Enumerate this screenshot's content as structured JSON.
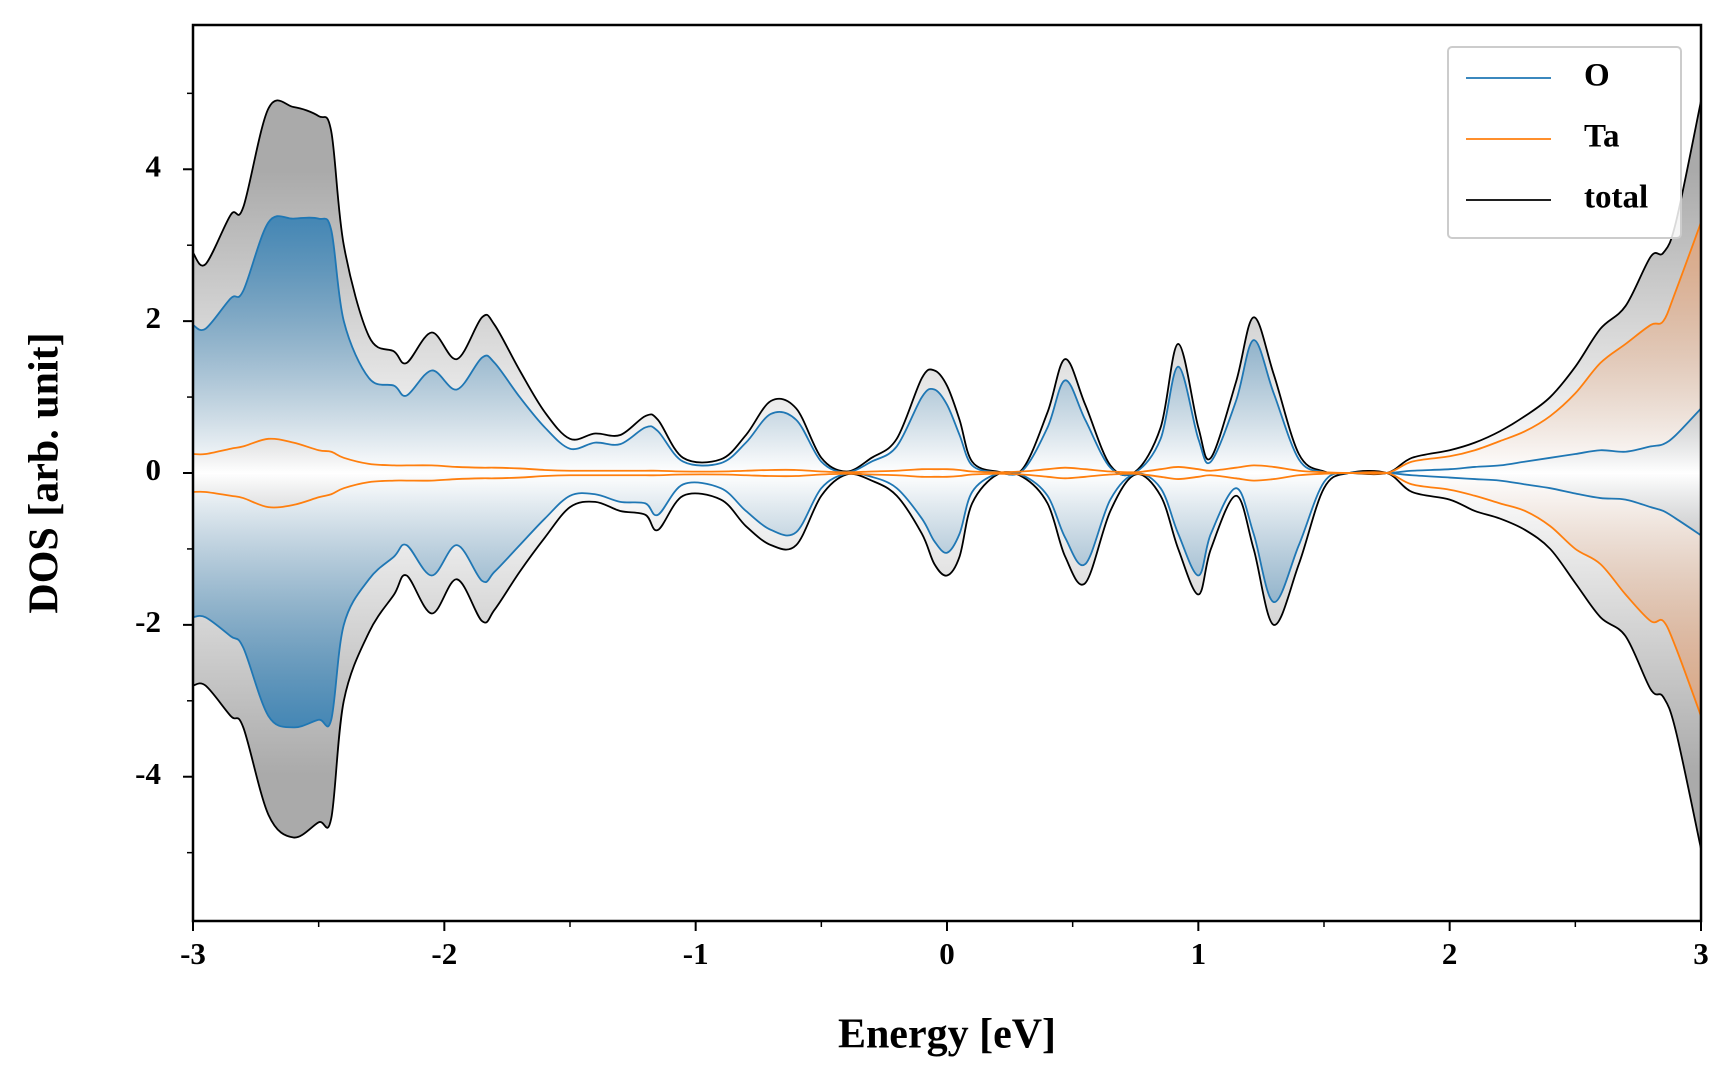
{
  "chart_data": {
    "type": "line",
    "xlabel": "Energy [eV]",
    "ylabel": "DOS [arb. unit]",
    "xlim": [
      -3,
      3
    ],
    "ylim": [
      -5.9,
      5.9
    ],
    "xticks": [
      -3,
      -2,
      -1,
      0,
      1,
      2,
      3
    ],
    "yticks": [
      -4,
      -2,
      0,
      2,
      4
    ],
    "xminorticks": [
      -2.5,
      -1.5,
      -0.5,
      0.5,
      1.5,
      2.5
    ],
    "yminorticks": [
      -5,
      -3,
      -1,
      1,
      3,
      5
    ],
    "legend": "upper right",
    "grid": false,
    "x": [
      -3,
      -2.95,
      -2.85,
      -2.8,
      -2.7,
      -2.6,
      -2.5,
      -2.45,
      -2.4,
      -2.3,
      -2.2,
      -2.15,
      -2.05,
      -1.95,
      -1.85,
      -1.8,
      -1.7,
      -1.6,
      -1.5,
      -1.4,
      -1.3,
      -1.2,
      -1.15,
      -1.05,
      -0.9,
      -0.8,
      -0.7,
      -0.6,
      -0.5,
      -0.4,
      -0.3,
      -0.2,
      -0.1,
      -0.05,
      0,
      0.05,
      0.1,
      0.2,
      0.3,
      0.4,
      0.47,
      0.55,
      0.65,
      0.75,
      0.85,
      0.92,
      1.0,
      1.05,
      1.15,
      1.22,
      1.3,
      1.4,
      1.5,
      1.6,
      1.75,
      1.85,
      2.0,
      2.1,
      2.2,
      2.3,
      2.4,
      2.5,
      2.6,
      2.7,
      2.8,
      2.85,
      2.9,
      3.0
    ],
    "series": [
      {
        "name": "total",
        "color": "#000000",
        "fill": "#a0a0a0",
        "values": [
          2.9,
          2.75,
          3.4,
          3.5,
          4.8,
          4.82,
          4.7,
          4.5,
          3.0,
          1.8,
          1.6,
          1.45,
          1.85,
          1.5,
          2.05,
          1.95,
          1.35,
          0.8,
          0.45,
          0.52,
          0.5,
          0.75,
          0.7,
          0.2,
          0.18,
          0.5,
          0.95,
          0.85,
          0.2,
          0.02,
          0.2,
          0.45,
          1.25,
          1.35,
          1.15,
          0.7,
          0.15,
          0.02,
          0.05,
          0.8,
          1.5,
          0.9,
          0.1,
          0.02,
          0.6,
          1.7,
          0.6,
          0.2,
          1.2,
          2.05,
          1.3,
          0.25,
          0.02,
          0,
          0,
          0.2,
          0.3,
          0.4,
          0.55,
          0.75,
          1.0,
          1.4,
          1.9,
          2.2,
          2.85,
          2.9,
          3.3,
          4.9
        ],
        "values_down": [
          -2.8,
          -2.8,
          -3.2,
          -3.35,
          -4.5,
          -4.8,
          -4.6,
          -4.55,
          -3.0,
          -2.1,
          -1.6,
          -1.35,
          -1.85,
          -1.4,
          -1.95,
          -1.8,
          -1.3,
          -0.85,
          -0.45,
          -0.38,
          -0.5,
          -0.55,
          -0.75,
          -0.3,
          -0.35,
          -0.7,
          -0.95,
          -0.95,
          -0.3,
          -0.02,
          -0.1,
          -0.3,
          -0.8,
          -1.2,
          -1.35,
          -1.1,
          -0.4,
          -0.02,
          -0.05,
          -0.4,
          -1.1,
          -1.45,
          -0.5,
          -0.02,
          -0.3,
          -1.0,
          -1.6,
          -1.0,
          -0.3,
          -1.0,
          -2.0,
          -1.2,
          -0.2,
          0,
          0,
          -0.25,
          -0.35,
          -0.5,
          -0.6,
          -0.75,
          -1.0,
          -1.45,
          -1.9,
          -2.15,
          -2.85,
          -2.95,
          -3.4,
          -4.95
        ]
      },
      {
        "name": "O",
        "color": "#1f77b4",
        "fill": "#1f77b4",
        "values": [
          1.95,
          1.9,
          2.3,
          2.4,
          3.3,
          3.35,
          3.35,
          3.2,
          2.0,
          1.25,
          1.15,
          1.02,
          1.35,
          1.1,
          1.52,
          1.45,
          1.0,
          0.6,
          0.32,
          0.4,
          0.38,
          0.6,
          0.55,
          0.15,
          0.13,
          0.4,
          0.78,
          0.7,
          0.15,
          0.01,
          0.15,
          0.35,
          1.0,
          1.1,
          0.9,
          0.5,
          0.1,
          0.01,
          0.03,
          0.6,
          1.22,
          0.7,
          0.07,
          0.01,
          0.45,
          1.4,
          0.45,
          0.15,
          0.95,
          1.75,
          1.05,
          0.18,
          0.01,
          0,
          0,
          0.03,
          0.05,
          0.08,
          0.1,
          0.15,
          0.2,
          0.25,
          0.3,
          0.28,
          0.35,
          0.38,
          0.5,
          0.85
        ],
        "values_down": [
          -1.9,
          -1.9,
          -2.15,
          -2.3,
          -3.2,
          -3.35,
          -3.25,
          -3.25,
          -2.0,
          -1.4,
          -1.1,
          -0.95,
          -1.35,
          -0.95,
          -1.42,
          -1.3,
          -0.95,
          -0.6,
          -0.3,
          -0.28,
          -0.38,
          -0.4,
          -0.55,
          -0.15,
          -0.2,
          -0.5,
          -0.75,
          -0.78,
          -0.2,
          -0.01,
          -0.05,
          -0.2,
          -0.6,
          -0.9,
          -1.05,
          -0.8,
          -0.25,
          -0.01,
          -0.03,
          -0.3,
          -0.85,
          -1.2,
          -0.35,
          -0.01,
          -0.2,
          -0.8,
          -1.35,
          -0.8,
          -0.2,
          -0.8,
          -1.7,
          -0.95,
          -0.12,
          0,
          0,
          -0.03,
          -0.06,
          -0.08,
          -0.1,
          -0.15,
          -0.2,
          -0.27,
          -0.33,
          -0.35,
          -0.45,
          -0.5,
          -0.6,
          -0.82
        ]
      },
      {
        "name": "Ta",
        "color": "#ff7f0e",
        "fill": "#e8a070",
        "values": [
          0.25,
          0.25,
          0.32,
          0.35,
          0.45,
          0.4,
          0.3,
          0.28,
          0.2,
          0.12,
          0.1,
          0.1,
          0.1,
          0.08,
          0.07,
          0.07,
          0.06,
          0.04,
          0.03,
          0.03,
          0.03,
          0.03,
          0.03,
          0.02,
          0.02,
          0.03,
          0.04,
          0.04,
          0.02,
          0.01,
          0.02,
          0.03,
          0.05,
          0.05,
          0.05,
          0.04,
          0.02,
          0.01,
          0.02,
          0.05,
          0.07,
          0.05,
          0.02,
          0.01,
          0.05,
          0.08,
          0.05,
          0.03,
          0.07,
          0.1,
          0.08,
          0.03,
          0.01,
          0,
          0,
          0.15,
          0.22,
          0.3,
          0.42,
          0.55,
          0.75,
          1.05,
          1.45,
          1.7,
          1.95,
          2.0,
          2.4,
          3.3
        ],
        "values_down": [
          -0.25,
          -0.25,
          -0.3,
          -0.33,
          -0.45,
          -0.42,
          -0.32,
          -0.28,
          -0.2,
          -0.12,
          -0.1,
          -0.1,
          -0.1,
          -0.08,
          -0.07,
          -0.07,
          -0.06,
          -0.04,
          -0.03,
          -0.03,
          -0.03,
          -0.03,
          -0.03,
          -0.02,
          -0.02,
          -0.03,
          -0.04,
          -0.04,
          -0.02,
          -0.01,
          -0.02,
          -0.03,
          -0.05,
          -0.05,
          -0.05,
          -0.04,
          -0.02,
          -0.01,
          -0.02,
          -0.05,
          -0.07,
          -0.05,
          -0.02,
          -0.01,
          -0.05,
          -0.08,
          -0.05,
          -0.03,
          -0.07,
          -0.1,
          -0.08,
          -0.03,
          -0.01,
          0,
          0,
          -0.15,
          -0.22,
          -0.3,
          -0.4,
          -0.5,
          -0.7,
          -1.0,
          -1.2,
          -1.6,
          -1.95,
          -1.95,
          -2.3,
          -3.2
        ]
      }
    ],
    "legend_order": [
      1,
      2,
      0
    ]
  }
}
